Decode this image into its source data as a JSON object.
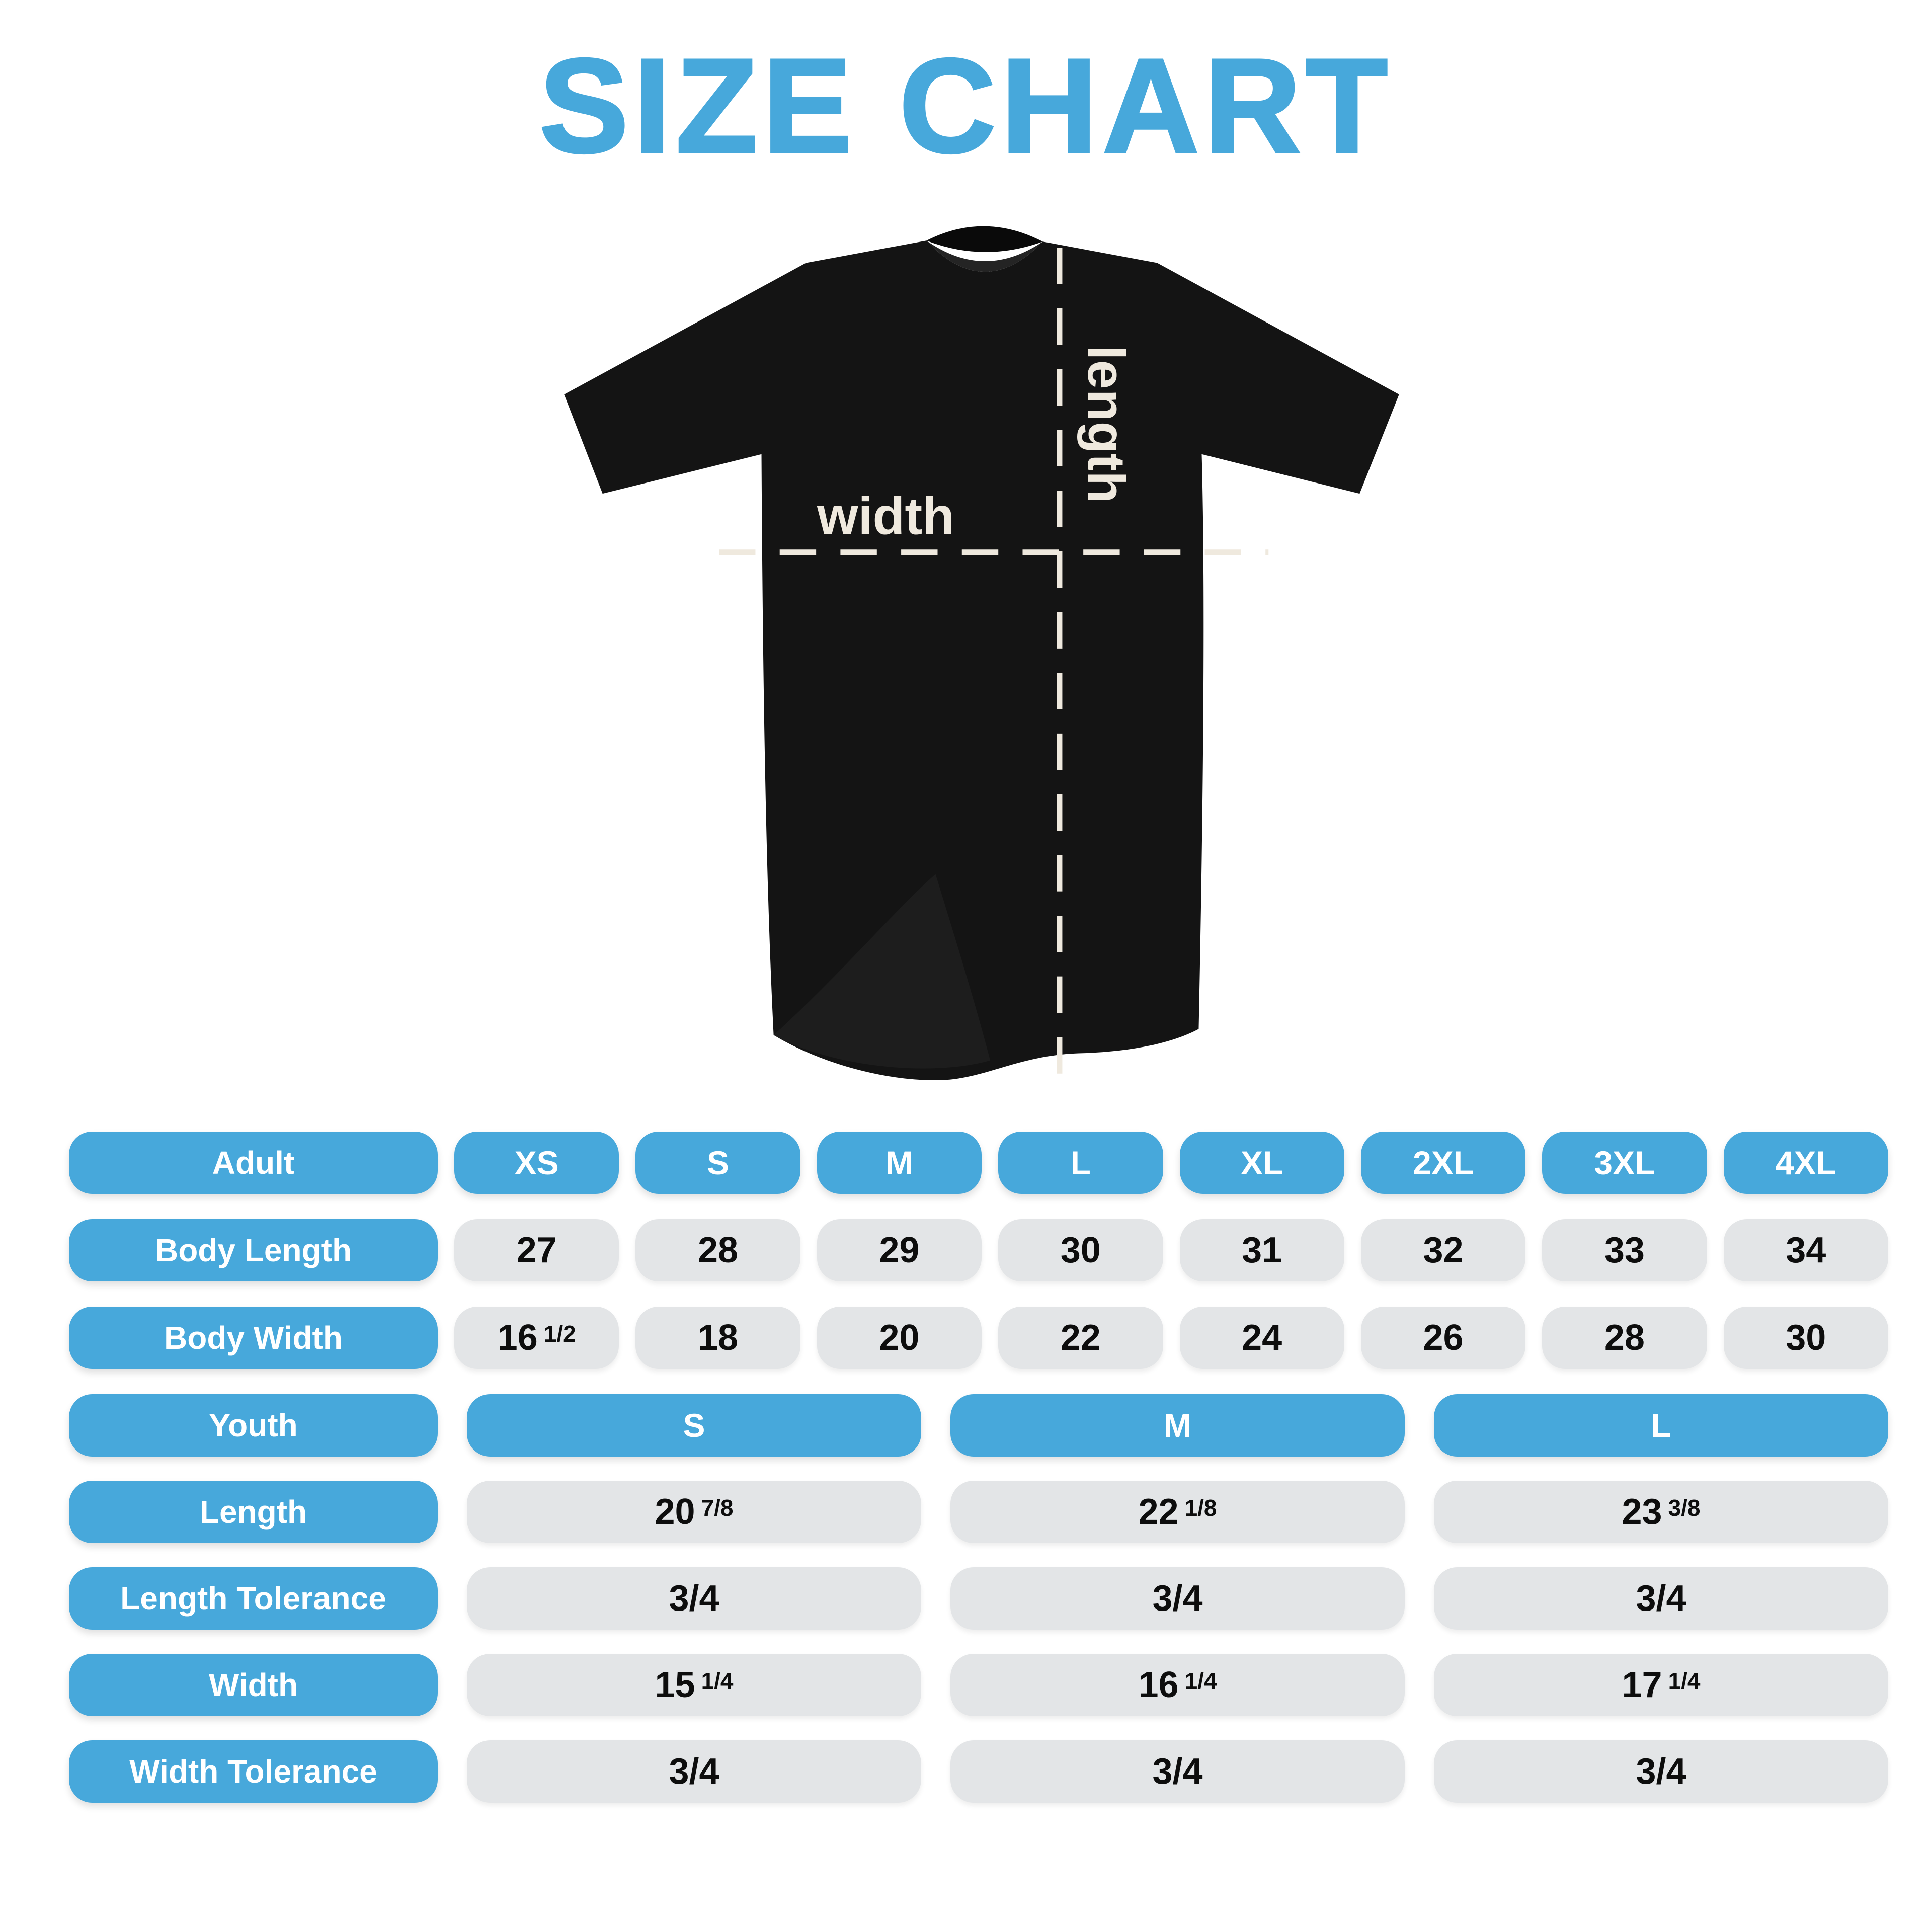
{
  "title": "SIZE CHART",
  "colors": {
    "accent": "#47A8DB",
    "pill_gray": "#E3E5E7",
    "cream": "#EFE9DE",
    "shirt": "#141414",
    "value_text": "#0D0D0D"
  },
  "diagram": {
    "length_label": "length",
    "width_label": "width"
  },
  "adult": {
    "header_label": "Adult",
    "sizes": [
      "XS",
      "S",
      "M",
      "L",
      "XL",
      "2XL",
      "3XL",
      "4XL"
    ],
    "rows": [
      {
        "label": "Body Length",
        "values": [
          "27",
          "28",
          "29",
          "30",
          "31",
          "32",
          "33",
          "34"
        ]
      },
      {
        "label": "Body Width",
        "values": [
          "16 1/2",
          "18",
          "20",
          "22",
          "24",
          "26",
          "28",
          "30"
        ]
      }
    ]
  },
  "youth": {
    "header_label": "Youth",
    "sizes": [
      "S",
      "M",
      "L"
    ],
    "rows": [
      {
        "label": "Length",
        "values": [
          "20 7/8",
          "22 1/8",
          "23 3/8"
        ]
      },
      {
        "label": "Length Tolerance",
        "values": [
          "3/4",
          "3/4",
          "3/4"
        ]
      },
      {
        "label": "Width",
        "values": [
          "15 1/4",
          "16 1/4",
          "17 1/4"
        ]
      },
      {
        "label": "Width Tolerance",
        "values": [
          "3/4",
          "3/4",
          "3/4"
        ]
      }
    ]
  }
}
